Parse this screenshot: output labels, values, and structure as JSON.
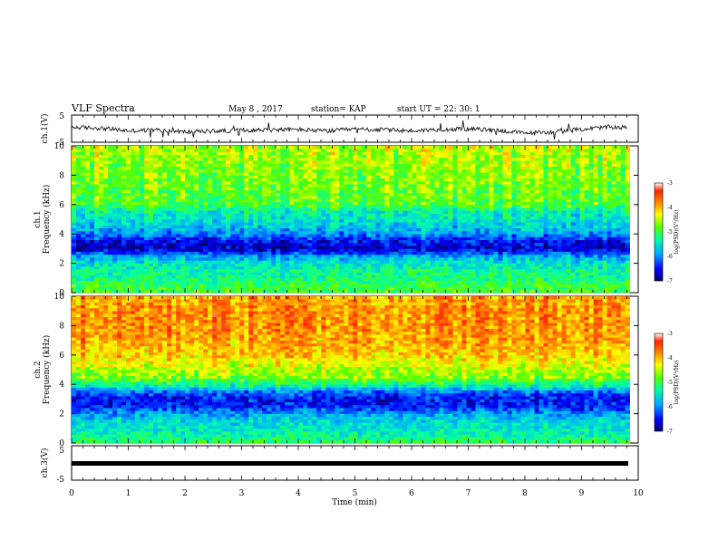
{
  "header": {
    "title": "VLF Spectra",
    "date": "May 8 , 2017",
    "station": "station= KAP",
    "start": "start UT = 22: 30: 1"
  },
  "chart_data": [
    {
      "type": "line",
      "panel": "ch1-waveform",
      "ylabel": "ch.1(V)",
      "ylim": [
        -5,
        5
      ],
      "xlim": [
        0,
        10
      ],
      "yticks": [
        "5",
        "-5"
      ],
      "description_values": "noisy voltage trace around -0.5 V with spikes to +3 V and -4 V",
      "x": [
        0,
        0.5,
        1,
        1.5,
        2,
        2.5,
        3,
        3.5,
        4,
        4.5,
        5,
        5.5,
        6,
        6.5,
        7,
        7.5,
        8,
        8.5,
        9,
        9.5,
        9.8
      ],
      "values": [
        0.5,
        0.2,
        -0.8,
        -0.5,
        -1.2,
        -0.9,
        -0.6,
        -0.4,
        -0.3,
        -0.9,
        -0.2,
        -0.4,
        -0.8,
        -0.3,
        -0.1,
        -0.6,
        -1.6,
        -1.3,
        -0.2,
        0.6,
        0.4
      ]
    },
    {
      "type": "heatmap",
      "panel": "ch1-spectrogram",
      "ylabel": "ch.1 Frequency (kHz)",
      "ylim": [
        0,
        10
      ],
      "yticks": [
        "0",
        "2",
        "4",
        "6",
        "8",
        "10"
      ],
      "xlim": [
        0,
        9.85
      ],
      "colorbar": {
        "label": "log(PSD)(V²/Hz)",
        "ticks": [
          "-3",
          "-4",
          "-5",
          "-6",
          "-7"
        ],
        "range": [
          -7,
          -3
        ]
      },
      "freq_profile_khz": [
        0,
        0.5,
        1,
        1.5,
        2,
        2.5,
        3,
        3.5,
        4,
        4.5,
        5,
        5.5,
        6,
        7,
        8,
        9,
        10
      ],
      "log_psd_profile": [
        -4.9,
        -5.0,
        -5.2,
        -5.3,
        -5.5,
        -5.9,
        -6.7,
        -6.5,
        -6.0,
        -5.7,
        -5.5,
        -5.4,
        -4.9,
        -4.8,
        -4.7,
        -4.6,
        -4.5
      ]
    },
    {
      "type": "heatmap",
      "panel": "ch2-spectrogram",
      "ylabel": "ch.2 Frequency (kHz)",
      "ylim": [
        0,
        10
      ],
      "yticks": [
        "0",
        "2",
        "4",
        "6",
        "8",
        "10"
      ],
      "xlim": [
        0,
        9.85
      ],
      "colorbar": {
        "label": "log(PSD)(V²/Hz)",
        "ticks": [
          "-3",
          "-4",
          "-5",
          "-6",
          "-7"
        ],
        "range": [
          -7,
          -3
        ]
      },
      "freq_profile_khz": [
        0,
        0.5,
        1,
        1.5,
        2,
        2.5,
        3,
        3.5,
        4,
        4.5,
        5,
        6,
        7,
        8,
        9,
        10
      ],
      "log_psd_profile": [
        -5.0,
        -5.3,
        -5.5,
        -5.6,
        -5.9,
        -6.4,
        -6.5,
        -6.1,
        -5.2,
        -4.7,
        -4.5,
        -4.1,
        -3.9,
        -3.8,
        -3.8,
        -3.9
      ]
    },
    {
      "type": "line",
      "panel": "ch3-waveform",
      "ylabel": "ch.3(V)",
      "ylim": [
        -5,
        5
      ],
      "yticks": [
        "5",
        "-5"
      ],
      "xlim": [
        0,
        10
      ],
      "x": [
        0,
        9.85
      ],
      "values": [
        -1,
        -1
      ]
    }
  ],
  "xaxis": {
    "label": "Time (min)",
    "ticks": [
      "0",
      "1",
      "2",
      "3",
      "4",
      "5",
      "6",
      "7",
      "8",
      "9",
      "10"
    ]
  },
  "colors": {
    "scale": [
      "#000080",
      "#0000ff",
      "#00aaff",
      "#00ffaa",
      "#55ff00",
      "#ffff00",
      "#ff8800",
      "#ff2200",
      "#ffffff"
    ]
  }
}
